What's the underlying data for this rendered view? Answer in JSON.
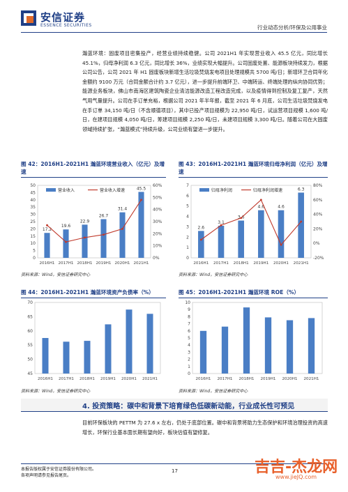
{
  "header": {
    "brand_cn": "安信证券",
    "brand_en": "ESSENCE SECURITIES",
    "section": "行业动态分析/环保及公用事业"
  },
  "body_text": "瀚蓝环境：固废项目密集投产，经营业绩持续稳健。公司 2021H1 年实现营业收入 45.5 亿元，同比增长 45.1%，归母净利润 6.3 亿元，同比增长 36%，业绩实现大幅提升。公司固废处置、能源板块持续发力，根据公司公告，公司 2021 年 H1 固废板块新增生活垃圾焚烧发电项目处理规模共 5700 吨/日；新增环卫合同年化金额约 9100 万元（合同金额合计约 3.7 亿元），进一步提升前端环卫、中端转运、终端处理的纵向协同优势；能源业务板块，佛山市南海区建筑陶瓷企业清洁能源改造工程改造完成，以及疫情得到控制及复工复产，天然气用气量提升。公司在手订单充裕，根据公司 2021 年半年报，截至 2021 年 6 月底，公司生活垃圾焚烧发电在手订单 34,150 吨/日（不含顺德项目），其中已投产项目规模为 22,950 吨/日，试运营项目规模 1,600 吨/日，在建项目规模 4,050 吨/日，筹建项目规模 2,250 吨/日，未建项目规模 3,300 吨/日。随着公司在大固废领域持续扩张，“瀚蓝模式”持续升级，公司业绩有望进一步提升。",
  "figures": {
    "f42": {
      "title": "图 42：2016H1-2021H1 瀚蓝环境营业收入（亿元）及增速",
      "source": "资料来源：Wind，安信证券研究中心"
    },
    "f43": {
      "title": "图 43：2016H1-2021H1 瀚蓝环境归母净利润（亿元）及增速",
      "source": "资料来源：Wind，安信证券研究中心"
    },
    "f44": {
      "title": "图 44：2016H1-2021H1 瀚蓝环境资产负债率（%）",
      "source": "资料来源：Wind，安信证券研究中心"
    },
    "f45": {
      "title": "图 45：2016H1-2021H1 瀚蓝环境 ROE（%）",
      "source": "资料来源：Wind，安信证券研究中心"
    }
  },
  "chart_data": [
    {
      "type": "bar",
      "categories": [
        "2016H1",
        "2017H1",
        "2018H1",
        "2019H1",
        "2020H1",
        "2021H1"
      ],
      "series": [
        {
          "name": "营业收入",
          "values": [
            17.2,
            19.6,
            22.9,
            26.7,
            31.4,
            45.5
          ],
          "color": "#4a7ec5"
        },
        {
          "name": "营业收入增速",
          "type": "line",
          "values": [
            null,
            null,
            null,
            null,
            null,
            null
          ],
          "color": "#c0392b"
        }
      ],
      "ylim": [
        0,
        50
      ],
      "yticks": [
        0,
        5,
        10,
        15,
        20,
        25,
        30,
        35,
        40,
        45,
        50
      ],
      "y2lim": [
        0,
        60
      ],
      "y2ticks": [
        "0%",
        "10%",
        "20%",
        "30%",
        "40%",
        "50%",
        "60%"
      ]
    },
    {
      "type": "bar",
      "categories": [
        "2016H1",
        "2017H1",
        "2018H1",
        "2019H1",
        "2020H1",
        "2021H1"
      ],
      "series": [
        {
          "name": "归母净利润",
          "values": [
            2.6,
            3.1,
            3.6,
            4.6,
            4.6,
            6.3
          ],
          "color": "#4a7ec5"
        },
        {
          "name": "归母净利润增速",
          "type": "line",
          "values": [
            null,
            null,
            null,
            null,
            null,
            null
          ],
          "color": "#c0392b"
        }
      ],
      "ylim": [
        0,
        7
      ],
      "yticks": [
        0,
        1,
        2,
        3,
        4,
        5,
        6,
        7
      ],
      "y2lim": [
        -20,
        80
      ],
      "y2ticks": [
        "-20%",
        "0%",
        "20%",
        "40%",
        "60%",
        "80%"
      ]
    },
    {
      "type": "bar",
      "categories": [
        "2016H1",
        "2017H1",
        "2018H1",
        "2019H1",
        "2020H1",
        "2021H1"
      ],
      "series": [
        {
          "values": [
            57.5,
            56.2,
            56.5,
            62.3,
            67.5,
            66.0
          ],
          "color": "#4a7ec5"
        }
      ],
      "ylim": [
        45,
        70
      ],
      "yticks": [
        45,
        50,
        55,
        60,
        65,
        70
      ]
    },
    {
      "type": "bar",
      "categories": [
        "2016H1",
        "2017H1",
        "2018H1",
        "2019H1",
        "2020H1",
        "2021H1"
      ],
      "series": [
        {
          "values": [
            6.0,
            6.6,
            9.3,
            7.9,
            7.5,
            7.8
          ],
          "color": "#4a7ec5"
        }
      ],
      "ylim": [
        0,
        10
      ],
      "yticks": [
        0,
        1,
        2,
        3,
        4,
        5,
        6,
        7,
        8,
        9,
        10
      ]
    }
  ],
  "section": {
    "number": "4.",
    "title": "投资策略：碳中和背景下培育绿色低碳新动能，行业成长性可预见"
  },
  "body_text2": "目前环保板块的 PETTM 为 27.6 x 左右，仍处于底部位置。碳中和背景将助力生态保护和环境治理投资的高速增长，环保行业基本面长期有望向好，板块估值有望修复。",
  "footer": {
    "line1": "本报告版权属于安信证券股份有限公司。",
    "line2": "各项声明请参见报告尾页。",
    "page": "17"
  },
  "watermark": {
    "text": "吉吉-杰龙网",
    "sub": "www.jieJQ.com"
  }
}
